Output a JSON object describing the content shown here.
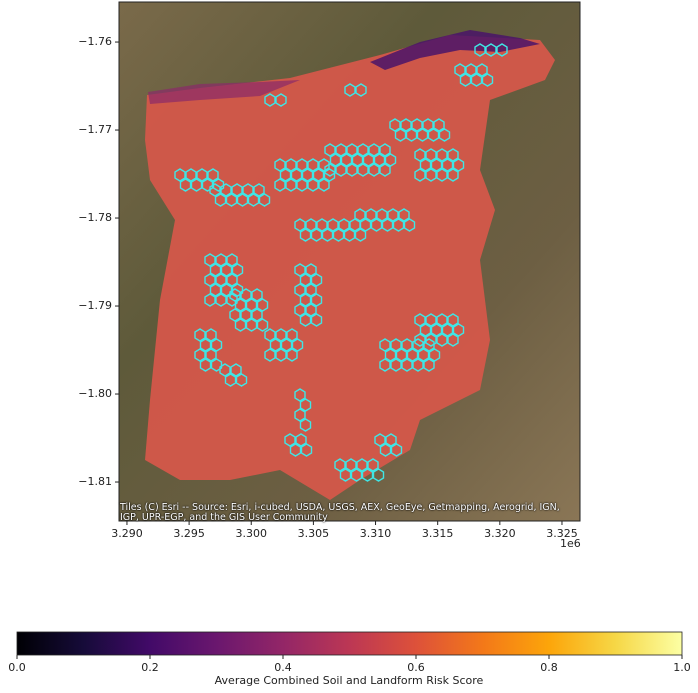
{
  "chart_data": {
    "type": "map",
    "xlim": [
      3.28936,
      3.32645
    ],
    "ylim": [
      -1.81443,
      -1.75545
    ],
    "xticks": [
      {
        "value": 3.29,
        "label": "3.290"
      },
      {
        "value": 3.295,
        "label": "3.295"
      },
      {
        "value": 3.3,
        "label": "3.300"
      },
      {
        "value": 3.305,
        "label": "3.305"
      },
      {
        "value": 3.31,
        "label": "3.310"
      },
      {
        "value": 3.315,
        "label": "3.315"
      },
      {
        "value": 3.32,
        "label": "3.320"
      },
      {
        "value": 3.325,
        "label": "3.325"
      }
    ],
    "yticks": [
      {
        "value": -1.76,
        "label": "−1.76"
      },
      {
        "value": -1.77,
        "label": "−1.77"
      },
      {
        "value": -1.78,
        "label": "−1.78"
      },
      {
        "value": -1.79,
        "label": "−1.79"
      },
      {
        "value": -1.8,
        "label": "−1.80"
      },
      {
        "value": -1.81,
        "label": "−1.81"
      }
    ],
    "x_offset_label": "1e6",
    "attribution": "Tiles (C) Esri -- Source: Esri, i-cubed, USDA, USGS, AEX, GeoEye, Getmapping, Aerogrid, IGN, IGP, UPR-EGP, and the GIS User Community",
    "colorbar": {
      "label": "Average Combined Soil and Landform Risk Score",
      "colormap": "inferno",
      "lim": [
        0,
        1
      ],
      "ticks": [
        {
          "value": 0,
          "label": "0.0"
        },
        {
          "value": 0.2,
          "label": "0.2"
        },
        {
          "value": 0.4,
          "label": "0.4"
        },
        {
          "value": 0.6,
          "label": "0.6"
        },
        {
          "value": 0.8,
          "label": "0.8"
        },
        {
          "value": 1,
          "label": "1.0"
        }
      ]
    }
  }
}
